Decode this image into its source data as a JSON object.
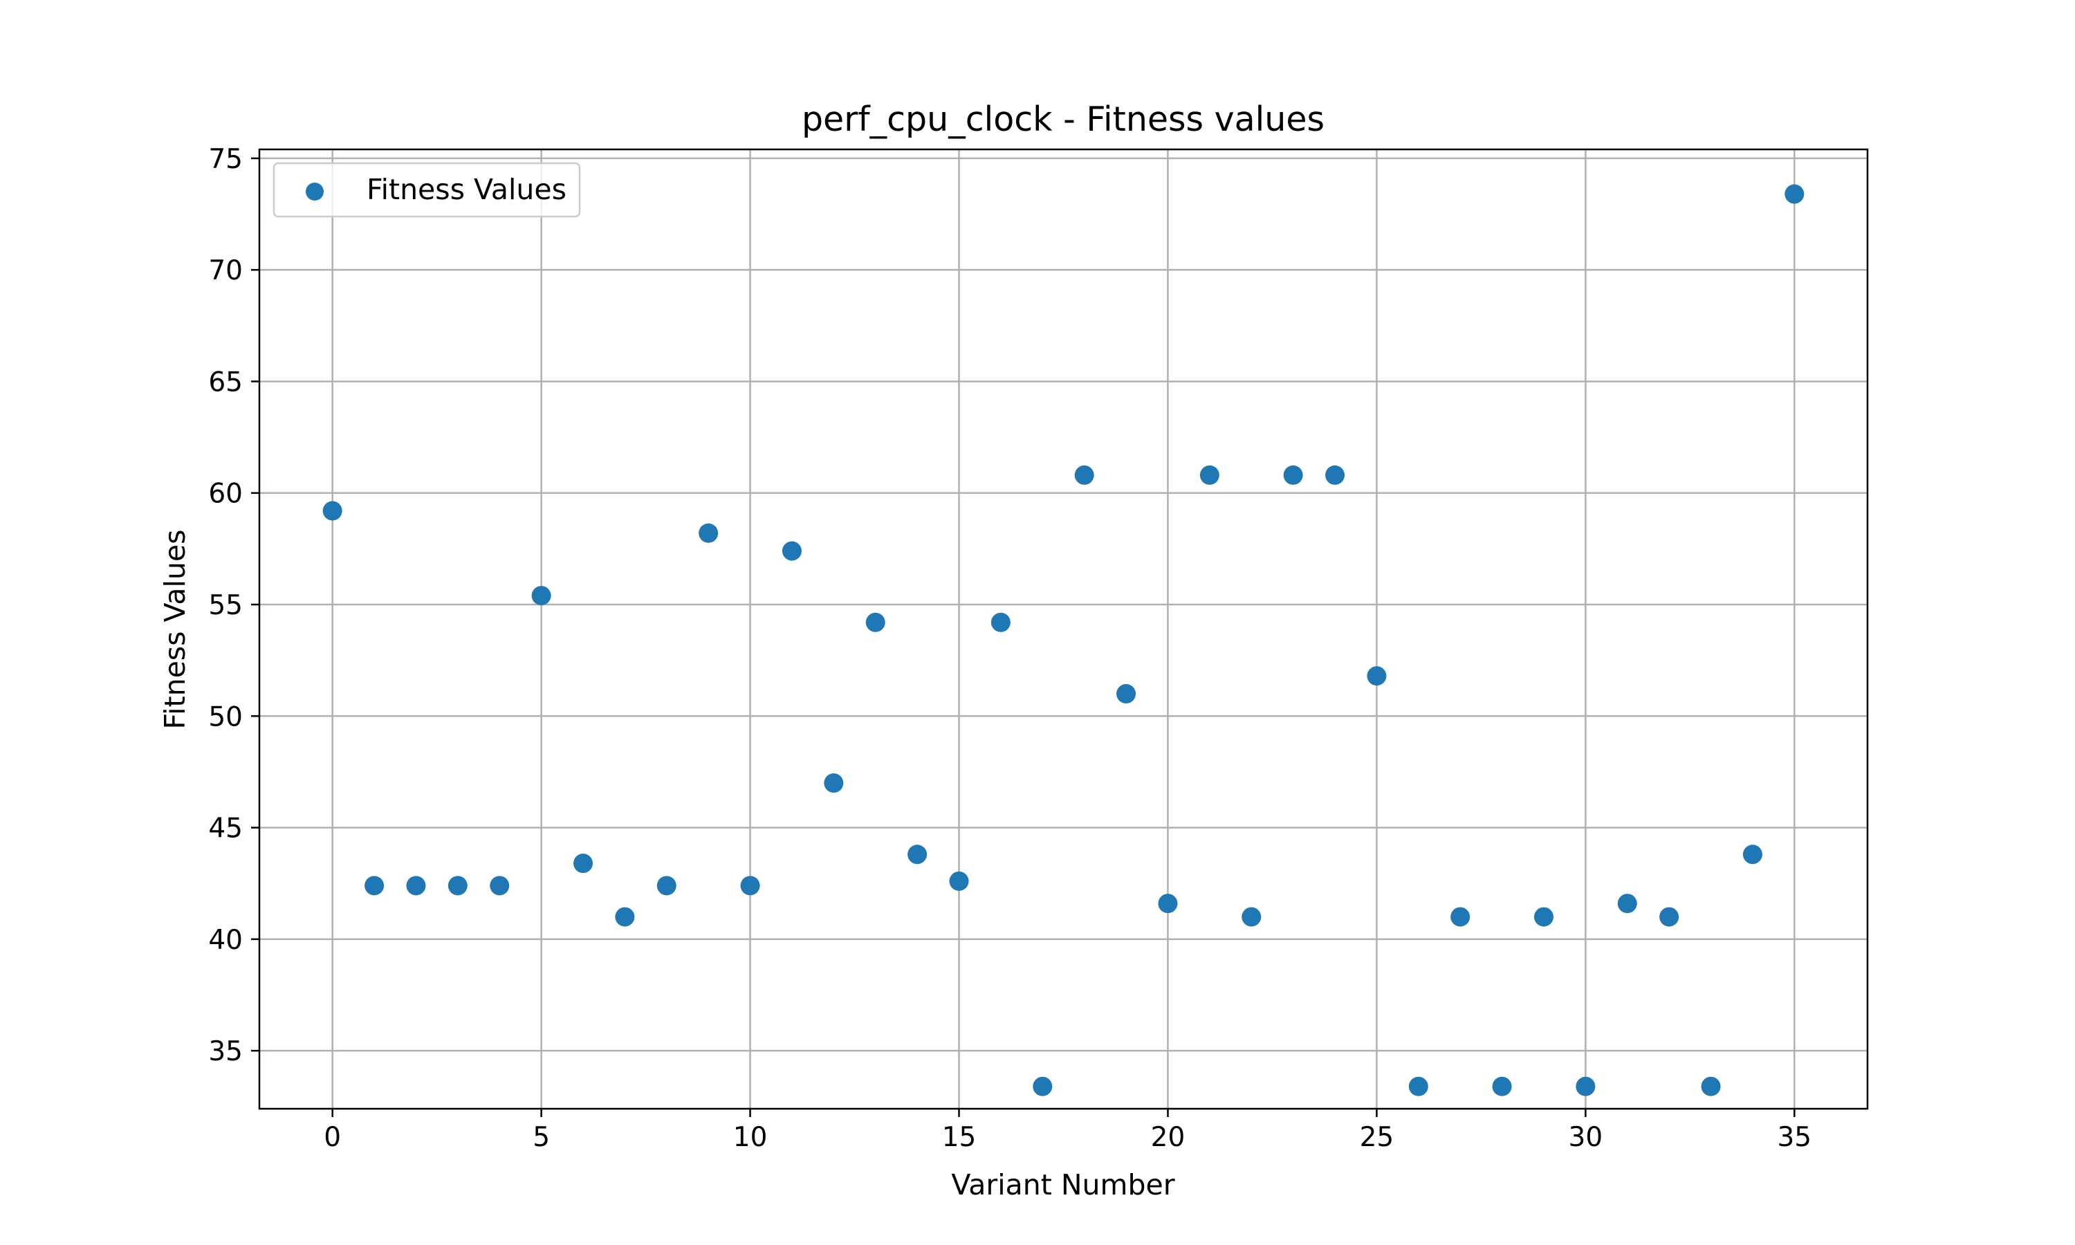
{
  "chart_data": {
    "type": "scatter",
    "title": "perf_cpu_clock - Fitness values",
    "xlabel": "Variant Number",
    "ylabel": "Fitness Values",
    "xlim": [
      -1.75,
      36.75
    ],
    "ylim": [
      32.4,
      75.4
    ],
    "xticks": [
      0,
      5,
      10,
      15,
      20,
      25,
      30,
      35
    ],
    "yticks": [
      35,
      40,
      45,
      50,
      55,
      60,
      65,
      70,
      75
    ],
    "grid": true,
    "legend": {
      "placement": "top-left",
      "entries": [
        "Fitness Values"
      ]
    },
    "colors": {
      "marker": "#1f77b4",
      "grid": "#b0b0b0"
    },
    "series": [
      {
        "name": "Fitness Values",
        "x": [
          0,
          1,
          2,
          3,
          4,
          5,
          6,
          7,
          8,
          9,
          10,
          11,
          12,
          13,
          14,
          15,
          16,
          17,
          18,
          19,
          20,
          21,
          22,
          23,
          24,
          25,
          26,
          27,
          28,
          29,
          30,
          31,
          32,
          33,
          34,
          35
        ],
        "y": [
          59.2,
          42.4,
          42.4,
          42.4,
          42.4,
          55.4,
          43.4,
          41.0,
          42.4,
          58.2,
          42.4,
          57.4,
          47.0,
          54.2,
          43.8,
          42.6,
          54.2,
          33.4,
          60.8,
          51.0,
          41.6,
          60.8,
          41.0,
          60.8,
          60.8,
          51.8,
          33.4,
          41.0,
          33.4,
          41.0,
          33.4,
          41.6,
          41.0,
          33.4,
          43.8,
          73.4
        ]
      }
    ]
  }
}
